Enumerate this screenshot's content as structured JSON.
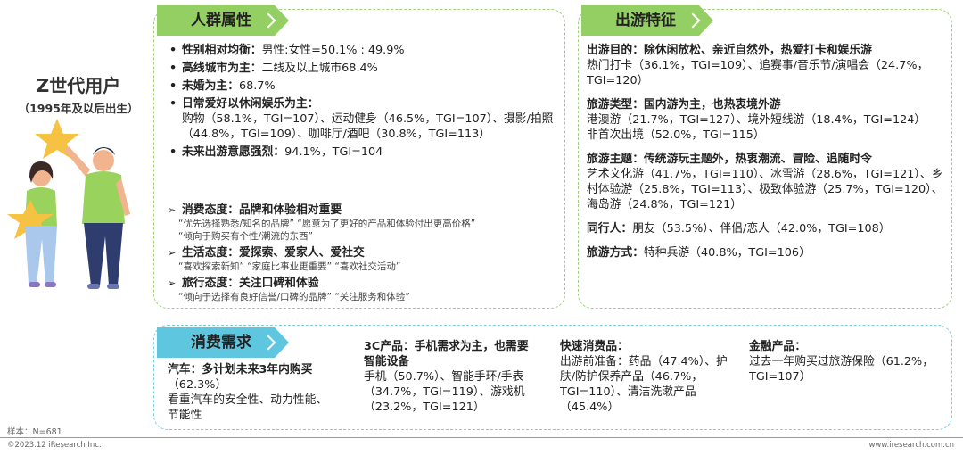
{
  "user_group": {
    "title": "Z世代用户",
    "subtitle": "（1995年及以后出生）"
  },
  "crowd": {
    "tag": "人群属性",
    "items": [
      {
        "head": "性别相对均衡：",
        "text": "男性:女性=50.1% : 49.9%"
      },
      {
        "head": "高线城市为主：",
        "text": "二线及以上城市68.4%"
      },
      {
        "head": "未婚为主：",
        "text": "68.7%"
      },
      {
        "head": "日常爱好以休闲娱乐为主：",
        "text": "购物（58.1%，TGI=107）、运动健身（46.5%，TGI=107）、摄影/拍照（44.8%，TGI=109）、咖啡厅/酒吧（30.8%，TGI=113）"
      },
      {
        "head": "未来出游意愿强烈：",
        "text": "94.1%，TGI=104"
      }
    ],
    "attitudes": [
      {
        "head": "消费态度：品牌和体验相对重要",
        "quotes": [
          "“优先选择熟悉/知名的品牌”  “愿意为了更好的产品和体验付出更高价格”",
          "“倾向于购买有个性/潮流的东西”"
        ]
      },
      {
        "head": "生活态度：爱探索、爱家人、爱社交",
        "quotes": [
          "“喜欢探索新知”  “家庭比事业更重要”  “喜欢社交活动”"
        ]
      },
      {
        "head": "旅行态度：关注口碑和体验",
        "quotes": [
          "“倾向于选择有良好信誉/口碑的品牌”  “关注服务和体验”"
        ]
      }
    ]
  },
  "travel": {
    "tag": "出游特征",
    "blocks": [
      {
        "head": "出游目的：除休闲放松、亲近自然外，热爱打卡和娱乐游",
        "text": "热门打卡（36.1%，TGI=109）、追赛事/音乐节/演唱会（24.7%，TGI=120）"
      },
      {
        "head": "旅游类型：国内游为主，也热衷境外游",
        "text": "港澳游（21.7%，TGI=127）、境外短线游（18.4%，TGI=124）",
        "text2": "非首次出境（52.0%，TGI=115）"
      },
      {
        "head": "旅游主题：传统游玩主题外，热衷潮流、冒险、追随时令",
        "text": "艺术文化游（41.7%，TGI=110）、冰雪游（28.6%，TGI=121）、乡村体验游（25.8%，TGI=113）、极致体验游（25.7%，TGI=120）、海岛游（24.8%，TGI=121）"
      },
      {
        "head": "同行人：",
        "text": "朋友（53.5%）、伴侣/恋人（42.0%，TGI=108）"
      },
      {
        "head": "旅游方式：",
        "text": "特种兵游（40.8%，TGI=106）"
      }
    ]
  },
  "demand": {
    "tag": "消费需求",
    "car": {
      "head": "汽车：多计划未来3年内购买",
      "pct": "（62.3%）",
      "text": "看重汽车的安全性、动力性能、节能性"
    },
    "tech": {
      "head": "3C产品：手机需求为主，也需要智能设备",
      "text": "手机（50.7%）、智能手环/手表（34.7%，TGI=119）、游戏机（23.2%，TGI=121）"
    },
    "fmcg": {
      "head": "快速消费品：",
      "text": "出游前准备：药品（47.4%）、护肤/防护保养产品（46.7%，TGI=110）、清洁洗漱产品（45.4%）"
    },
    "finance": {
      "head": "金融产品：",
      "text": "过去一年购买过旅游保险（61.2%，TGI=107）"
    }
  },
  "footer": {
    "sample": "样本：N=681",
    "copyright": "©2023.12 iResearch Inc.",
    "url": "www.iresearch.com.cn"
  },
  "colors": {
    "green_tag": "#93cf63",
    "blue_tag": "#5fc6e0",
    "green_border": "#9fd17a",
    "blue_border": "#7fcde0"
  }
}
